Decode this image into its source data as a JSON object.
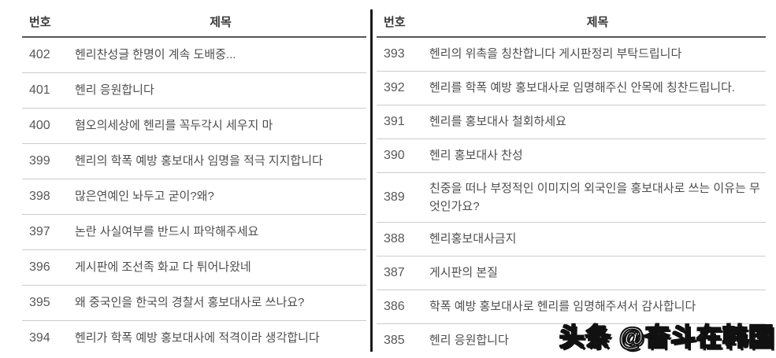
{
  "left_table": {
    "headers": {
      "no": "번호",
      "title": "제목"
    },
    "rows": [
      {
        "no": "402",
        "title": "헨리찬성글 한명이 계속 도배중..."
      },
      {
        "no": "401",
        "title": "헨리 응원합니다"
      },
      {
        "no": "400",
        "title": "혐오의세상에 헨리를 꼭두각시 세우지 마"
      },
      {
        "no": "399",
        "title": "헨리의 학폭 예방 홍보대사 임명을 적극 지지합니다"
      },
      {
        "no": "398",
        "title": "많은연예인 놔두고 굳이?왜?"
      },
      {
        "no": "397",
        "title": "논란 사실여부를 반드시 파악해주세요"
      },
      {
        "no": "396",
        "title": "게시판에 조선족 화교 다 튀어나왔네"
      },
      {
        "no": "395",
        "title": "왜 중국인을 한국의 경찰서 홍보대사로 쓰나요?"
      },
      {
        "no": "394",
        "title": "헨리가 학폭 예방 홍보대사에 적격이라 생각합니다"
      }
    ]
  },
  "right_table": {
    "headers": {
      "no": "번호",
      "title": "제목"
    },
    "rows": [
      {
        "no": "393",
        "title": "헨리의 위촉을 칭찬합니다 게시판정리 부탁드립니다"
      },
      {
        "no": "392",
        "title": "헨리를 학폭 예방 홍보대사로 임명해주신 안목에 칭찬드립니다."
      },
      {
        "no": "391",
        "title": "헨리를 홍보대사 철회하세요"
      },
      {
        "no": "390",
        "title": "헨리 홍보대사 찬성"
      },
      {
        "no": "389",
        "title": "친중을 떠나 부정적인 이미지의 외국인을 홍보대사로 쓰는 이유는 무엇인가요?",
        "two_line": true
      },
      {
        "no": "388",
        "title": "헨리홍보대사금지"
      },
      {
        "no": "387",
        "title": "게시판의 본질"
      },
      {
        "no": "386",
        "title": "학폭 예방 홍보대사로 헨리를 임명해주셔서 감사합니다"
      },
      {
        "no": "385",
        "title": "헨리 응원합니다"
      }
    ]
  },
  "watermark": {
    "text": "头条 @奋斗在韩国"
  },
  "colors": {
    "background": "#ffffff",
    "divider": "#1a1a1a",
    "header_line": "#575757",
    "row_line": "#cccccc",
    "header_text": "#3a3a3a",
    "number_text": "#585858",
    "title_text": "#4e4e4e",
    "watermark_fill": "#ffffff",
    "watermark_outline": "#111111"
  }
}
